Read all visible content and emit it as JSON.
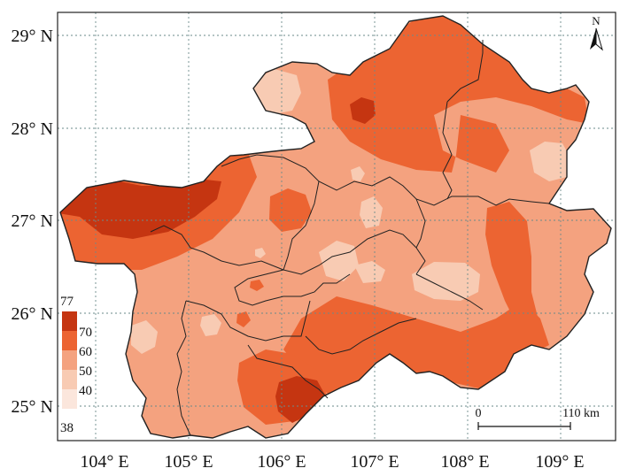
{
  "map": {
    "x_ticks": [
      "104° E",
      "105° E",
      "106° E",
      "107° E",
      "108° E",
      "109° E"
    ],
    "y_ticks": [
      "29° N",
      "28° N",
      "27° N",
      "26° N",
      "25° N"
    ],
    "north_label": "N",
    "colors": {
      "band_38_40": "#fbe6dc",
      "band_40_50": "#f8cbb3",
      "band_50_60": "#f4a27f",
      "band_60_70": "#ec6432",
      "band_70_77": "#c53511",
      "grid": "#6a8a8a",
      "border": "#222222"
    }
  },
  "legend": {
    "max_label": "77",
    "min_label": "38",
    "levels": [
      {
        "label": "70"
      },
      {
        "label": "60"
      },
      {
        "label": "50"
      },
      {
        "label": "40"
      }
    ]
  },
  "scale_bar": {
    "start_label": "0",
    "end_label": "110 km"
  }
}
